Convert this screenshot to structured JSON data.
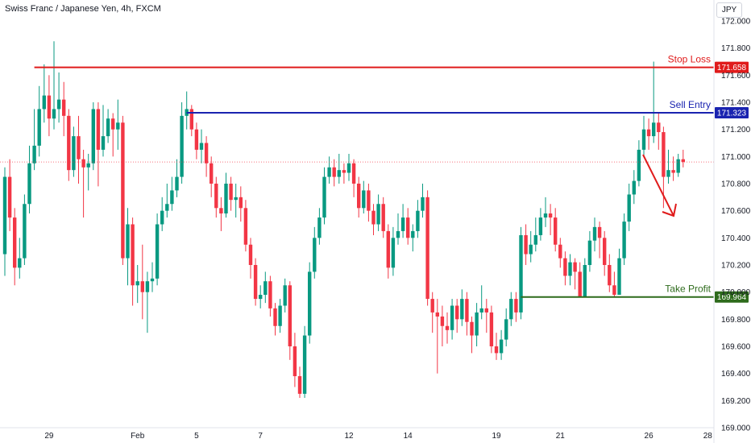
{
  "header": {
    "title": "Swiss Franc / Japanese Yen, 4h, FXCM",
    "currency": "JPY"
  },
  "chart_data": {
    "type": "candlestick",
    "title": "Swiss Franc / Japanese Yen, 4h, FXCM",
    "y_axis": {
      "range": [
        169.0,
        172.0
      ],
      "ticks": [
        "172.000",
        "171.800",
        "171.600",
        "171.400",
        "171.200",
        "171.000",
        "170.800",
        "170.600",
        "170.400",
        "170.200",
        "170.000",
        "169.800",
        "169.600",
        "169.400",
        "169.200",
        "169.000"
      ]
    },
    "x_axis": {
      "ticks": [
        {
          "label": "29",
          "i": 9
        },
        {
          "label": "Feb",
          "i": 27
        },
        {
          "label": "5",
          "i": 39
        },
        {
          "label": "7",
          "i": 52
        },
        {
          "label": "12",
          "i": 70
        },
        {
          "label": "14",
          "i": 82
        },
        {
          "label": "19",
          "i": 100
        },
        {
          "label": "21",
          "i": 113
        },
        {
          "label": "26",
          "i": 131
        },
        {
          "label": "28",
          "i": 143
        }
      ]
    },
    "candles": [
      [
        170.28,
        170.85,
        170.92,
        170.12
      ],
      [
        170.85,
        170.55,
        170.98,
        170.45
      ],
      [
        170.55,
        170.18,
        170.62,
        170.05
      ],
      [
        170.18,
        170.25,
        170.4,
        170.1
      ],
      [
        170.25,
        170.65,
        170.72,
        170.2
      ],
      [
        170.65,
        170.95,
        171.08,
        170.58
      ],
      [
        170.95,
        171.08,
        171.35,
        170.9
      ],
      [
        171.08,
        171.35,
        171.52,
        171.0
      ],
      [
        171.35,
        171.45,
        171.68,
        171.25
      ],
      [
        171.45,
        171.28,
        171.6,
        171.15
      ],
      [
        171.28,
        171.35,
        171.85,
        171.2
      ],
      [
        171.35,
        171.42,
        171.62,
        171.25
      ],
      [
        171.42,
        171.3,
        171.55,
        171.15
      ],
      [
        171.3,
        170.9,
        171.35,
        170.82
      ],
      [
        170.9,
        171.15,
        171.22,
        170.85
      ],
      [
        171.15,
        170.98,
        171.3,
        170.8
      ],
      [
        170.98,
        170.92,
        171.05,
        170.55
      ],
      [
        170.92,
        170.95,
        171.02,
        170.75
      ],
      [
        170.95,
        171.35,
        171.4,
        170.9
      ],
      [
        171.35,
        171.05,
        171.4,
        170.78
      ],
      [
        171.05,
        171.15,
        171.38,
        171.0
      ],
      [
        171.15,
        171.28,
        171.35,
        171.1
      ],
      [
        171.28,
        171.2,
        171.32,
        171.0
      ],
      [
        171.2,
        171.25,
        171.42,
        171.05
      ],
      [
        171.25,
        170.25,
        171.3,
        170.2
      ],
      [
        170.25,
        170.5,
        170.62,
        170.05
      ],
      [
        170.5,
        170.05,
        170.55,
        169.9
      ],
      [
        170.05,
        170.08,
        170.2,
        169.92
      ],
      [
        170.08,
        170.0,
        170.35,
        169.8
      ],
      [
        170.0,
        170.08,
        170.15,
        169.7
      ],
      [
        170.08,
        170.1,
        170.22,
        170.0
      ],
      [
        170.1,
        170.5,
        170.58,
        170.05
      ],
      [
        170.5,
        170.6,
        170.7,
        170.45
      ],
      [
        170.6,
        170.65,
        170.8,
        170.55
      ],
      [
        170.65,
        170.75,
        170.85,
        170.6
      ],
      [
        170.75,
        170.85,
        170.98,
        170.7
      ],
      [
        170.85,
        171.3,
        171.4,
        170.8
      ],
      [
        171.3,
        171.35,
        171.48,
        171.2
      ],
      [
        171.35,
        171.2,
        171.38,
        171.15
      ],
      [
        171.2,
        171.05,
        171.25,
        170.98
      ],
      [
        171.05,
        171.1,
        171.2,
        170.95
      ],
      [
        171.1,
        170.95,
        171.15,
        170.85
      ],
      [
        170.95,
        170.8,
        171.0,
        170.7
      ],
      [
        170.8,
        170.62,
        170.85,
        170.55
      ],
      [
        170.62,
        170.58,
        170.7,
        170.45
      ],
      [
        170.58,
        170.8,
        170.88,
        170.55
      ],
      [
        170.8,
        170.68,
        170.85,
        170.6
      ],
      [
        170.68,
        170.7,
        170.8,
        170.55
      ],
      [
        170.7,
        170.62,
        170.78,
        170.52
      ],
      [
        170.62,
        170.35,
        170.68,
        170.3
      ],
      [
        170.35,
        170.2,
        170.4,
        170.1
      ],
      [
        170.2,
        169.95,
        170.25,
        169.9
      ],
      [
        169.95,
        169.98,
        170.05,
        169.88
      ],
      [
        169.98,
        170.08,
        170.15,
        169.92
      ],
      [
        170.08,
        169.88,
        170.12,
        169.82
      ],
      [
        169.88,
        169.75,
        169.92,
        169.68
      ],
      [
        169.75,
        169.9,
        169.95,
        169.7
      ],
      [
        169.9,
        170.05,
        170.1,
        169.85
      ],
      [
        170.05,
        169.6,
        170.08,
        169.5
      ],
      [
        169.6,
        169.38,
        169.7,
        169.3
      ],
      [
        169.38,
        169.25,
        169.45,
        169.22
      ],
      [
        169.25,
        169.68,
        169.75,
        169.22
      ],
      [
        169.68,
        170.15,
        170.22,
        169.62
      ],
      [
        170.15,
        170.4,
        170.48,
        170.1
      ],
      [
        170.4,
        170.55,
        170.62,
        170.35
      ],
      [
        170.55,
        170.85,
        170.92,
        170.5
      ],
      [
        170.85,
        170.92,
        171.0,
        170.8
      ],
      [
        170.92,
        170.85,
        170.98,
        170.78
      ],
      [
        170.85,
        170.9,
        171.02,
        170.8
      ],
      [
        170.9,
        170.88,
        170.95,
        170.8
      ],
      [
        170.88,
        170.95,
        171.02,
        170.82
      ],
      [
        170.95,
        170.8,
        170.98,
        170.7
      ],
      [
        170.8,
        170.62,
        170.85,
        170.55
      ],
      [
        170.62,
        170.75,
        170.82,
        170.58
      ],
      [
        170.75,
        170.6,
        170.8,
        170.52
      ],
      [
        170.6,
        170.5,
        170.65,
        170.42
      ],
      [
        170.5,
        170.65,
        170.72,
        170.45
      ],
      [
        170.65,
        170.45,
        170.7,
        170.4
      ],
      [
        170.45,
        170.18,
        170.5,
        170.1
      ],
      [
        170.18,
        170.4,
        170.48,
        170.12
      ],
      [
        170.4,
        170.45,
        170.58,
        170.35
      ],
      [
        170.45,
        170.55,
        170.65,
        170.4
      ],
      [
        170.55,
        170.4,
        170.62,
        170.35
      ],
      [
        170.4,
        170.45,
        170.5,
        170.3
      ],
      [
        170.45,
        170.6,
        170.68,
        170.4
      ],
      [
        170.6,
        170.7,
        170.8,
        170.55
      ],
      [
        170.7,
        169.95,
        170.75,
        169.9
      ],
      [
        169.95,
        169.85,
        170.0,
        169.7
      ],
      [
        169.85,
        169.82,
        169.95,
        169.4
      ],
      [
        169.82,
        169.75,
        169.9,
        169.6
      ],
      [
        169.75,
        169.72,
        169.85,
        169.62
      ],
      [
        169.72,
        169.9,
        169.95,
        169.65
      ],
      [
        169.9,
        169.8,
        169.95,
        169.7
      ],
      [
        169.8,
        169.95,
        170.02,
        169.75
      ],
      [
        169.95,
        169.78,
        170.0,
        169.68
      ],
      [
        169.78,
        169.68,
        169.82,
        169.55
      ],
      [
        169.68,
        169.85,
        169.92,
        169.6
      ],
      [
        169.85,
        169.88,
        170.05,
        169.8
      ],
      [
        169.88,
        169.85,
        169.95,
        169.7
      ],
      [
        169.85,
        169.6,
        169.9,
        169.55
      ],
      [
        169.6,
        169.55,
        169.7,
        169.5
      ],
      [
        169.55,
        169.65,
        169.72,
        169.5
      ],
      [
        169.65,
        169.8,
        169.88,
        169.6
      ],
      [
        169.8,
        169.95,
        170.0,
        169.75
      ],
      [
        169.95,
        169.85,
        170.0,
        169.78
      ],
      [
        169.85,
        170.42,
        170.48,
        169.8
      ],
      [
        170.42,
        170.28,
        170.5,
        170.2
      ],
      [
        170.28,
        170.35,
        170.45,
        170.22
      ],
      [
        170.35,
        170.42,
        170.55,
        170.3
      ],
      [
        170.42,
        170.55,
        170.62,
        170.38
      ],
      [
        170.55,
        170.58,
        170.7,
        170.48
      ],
      [
        170.58,
        170.55,
        170.65,
        170.42
      ],
      [
        170.55,
        170.35,
        170.62,
        170.3
      ],
      [
        170.35,
        170.25,
        170.4,
        170.18
      ],
      [
        170.25,
        170.12,
        170.3,
        170.05
      ],
      [
        170.12,
        170.22,
        170.28,
        170.05
      ],
      [
        170.22,
        170.15,
        170.25,
        170.02
      ],
      [
        170.15,
        169.96,
        170.22,
        169.96
      ],
      [
        169.96,
        170.2,
        170.25,
        169.98
      ],
      [
        170.2,
        170.38,
        170.45,
        170.15
      ],
      [
        170.38,
        170.48,
        170.55,
        170.3
      ],
      [
        170.48,
        170.4,
        170.52,
        170.25
      ],
      [
        170.4,
        170.2,
        170.45,
        170.12
      ],
      [
        170.2,
        170.05,
        170.28,
        170.0
      ],
      [
        170.05,
        169.98,
        170.15,
        169.96
      ],
      [
        169.98,
        170.25,
        170.32,
        169.98
      ],
      [
        170.25,
        170.52,
        170.58,
        170.2
      ],
      [
        170.52,
        170.72,
        170.8,
        170.45
      ],
      [
        170.72,
        170.82,
        170.9,
        170.65
      ],
      [
        170.82,
        171.05,
        171.12,
        170.78
      ],
      [
        171.05,
        171.2,
        171.3,
        171.0
      ],
      [
        171.2,
        171.15,
        171.28,
        171.05
      ],
      [
        171.15,
        171.25,
        171.7,
        171.1
      ],
      [
        171.25,
        171.18,
        171.32,
        171.05
      ],
      [
        171.18,
        170.85,
        171.22,
        170.62
      ],
      [
        170.85,
        170.9,
        171.05,
        170.8
      ],
      [
        170.9,
        170.88,
        171.0,
        170.82
      ],
      [
        170.88,
        170.98,
        171.02,
        170.85
      ],
      [
        170.98,
        170.96,
        171.05,
        170.92
      ]
    ],
    "levels": [
      {
        "name": "Stop Loss",
        "value": 171.658,
        "label": "171.658",
        "color": "#e01b1b"
      },
      {
        "name": "Sell Entry",
        "value": 171.323,
        "label": "171.323",
        "color": "#1a23b0"
      },
      {
        "name": "Take Profit",
        "value": 169.964,
        "label": "169.964",
        "color": "#2e6b1c"
      }
    ],
    "current_price": 170.96,
    "arrow": {
      "direction": "down",
      "color": "#e01b1b"
    },
    "colors": {
      "up": "#089981",
      "down": "#f23645"
    }
  }
}
